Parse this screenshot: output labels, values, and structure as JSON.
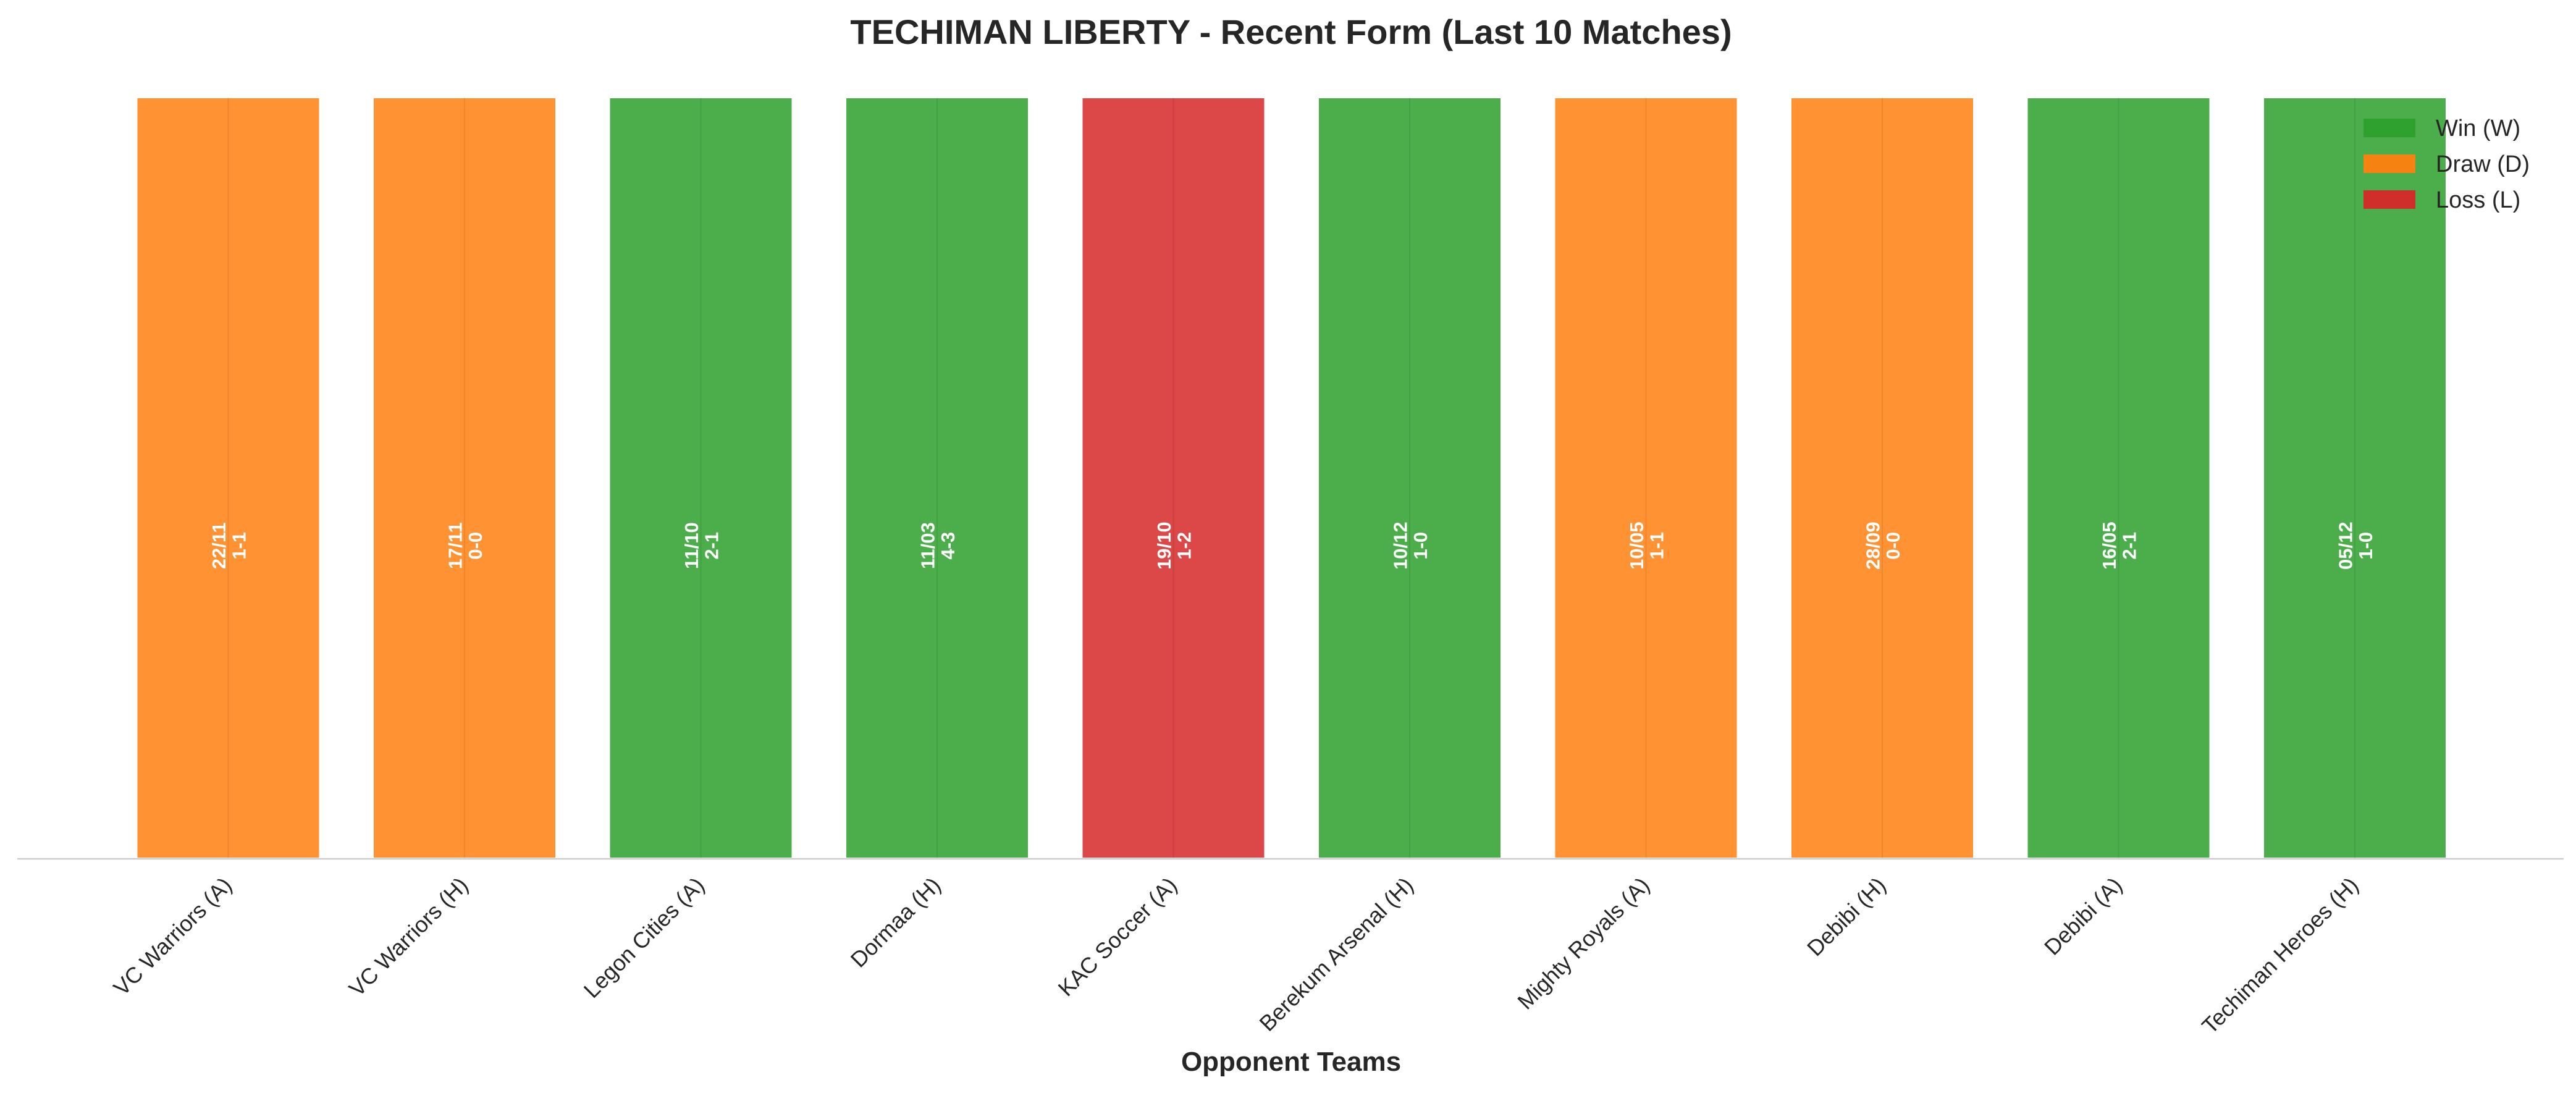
{
  "chart_data": {
    "type": "bar",
    "title": "TECHIMAN LIBERTY - Recent Form (Last 10 Matches)",
    "xlabel": "Opponent Teams",
    "ylabel": "",
    "grid": true,
    "legend_placement": "top-right",
    "categories": [
      "VC Warriors (A)",
      "VC Warriors (H)",
      "Legon Cities (A)",
      "Dormaa (H)",
      "KAC Soccer (A)",
      "Berekum Arsenal (H)",
      "Mighty Royals (A)",
      "Debibi (H)",
      "Debibi (A)",
      "Techiman Heroes (H)"
    ],
    "values": [
      1,
      1,
      1,
      1,
      1,
      1,
      1,
      1,
      1,
      1
    ],
    "results": [
      "D",
      "D",
      "W",
      "W",
      "L",
      "W",
      "D",
      "D",
      "W",
      "W"
    ],
    "dates": [
      "22/11",
      "17/11",
      "11/10",
      "11/03",
      "19/10",
      "10/12",
      "10/05",
      "28/09",
      "16/05",
      "05/12"
    ],
    "scores": [
      "1-1",
      "0-0",
      "2-1",
      "4-3",
      "1-2",
      "1-0",
      "1-1",
      "0-0",
      "2-1",
      "1-0"
    ],
    "legend": [
      {
        "key": "W",
        "label": "Win (W)",
        "color": "#2ca02c"
      },
      {
        "key": "D",
        "label": "Draw (D)",
        "color": "#ff7f0e"
      },
      {
        "key": "L",
        "label": "Loss (L)",
        "color": "#d62728"
      }
    ]
  }
}
